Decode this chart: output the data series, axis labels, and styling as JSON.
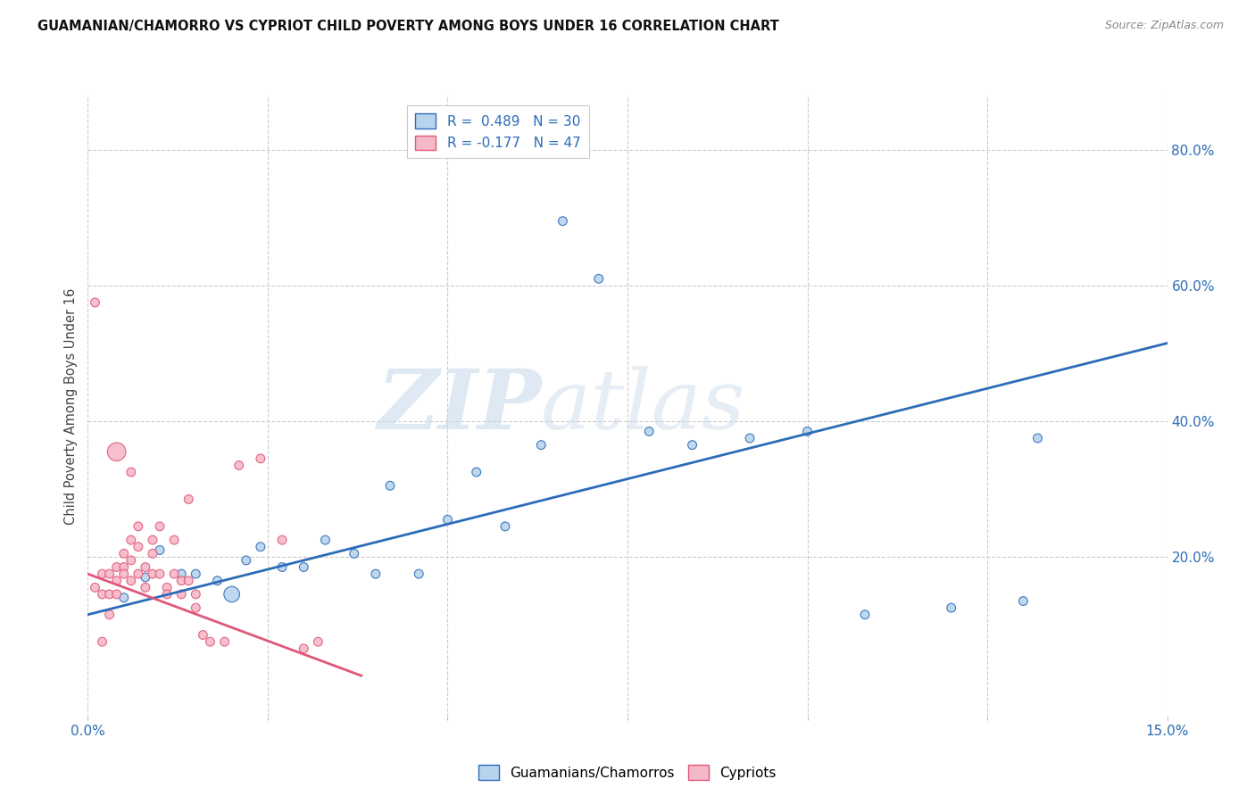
{
  "title": "GUAMANIAN/CHAMORRO VS CYPRIOT CHILD POVERTY AMONG BOYS UNDER 16 CORRELATION CHART",
  "source": "Source: ZipAtlas.com",
  "ylabel": "Child Poverty Among Boys Under 16",
  "blue_label": "Guamanians/Chamorros",
  "pink_label": "Cypriots",
  "blue_color": "#b8d4ed",
  "pink_color": "#f5b8c8",
  "blue_line_color": "#2b6cb8",
  "pink_line_color": "#e05878",
  "blue_r": "R =  0.489",
  "blue_n": "N = 30",
  "pink_r": "R = -0.177",
  "pink_n": "N = 47",
  "watermark_zip": "ZIP",
  "watermark_atlas": "atlas",
  "xmin": 0.0,
  "xmax": 0.15,
  "ymin": -0.035,
  "ymax": 0.88,
  "blue_trend_x": [
    0.0,
    0.15
  ],
  "blue_trend_y": [
    0.115,
    0.515
  ],
  "pink_trend_x": [
    0.0,
    0.038
  ],
  "pink_trend_y": [
    0.175,
    0.025
  ],
  "blue_x": [
    0.005,
    0.008,
    0.01,
    0.013,
    0.015,
    0.018,
    0.02,
    0.022,
    0.024,
    0.027,
    0.03,
    0.033,
    0.037,
    0.04,
    0.042,
    0.046,
    0.05,
    0.054,
    0.058,
    0.063,
    0.066,
    0.071,
    0.078,
    0.084,
    0.092,
    0.1,
    0.108,
    0.12,
    0.13,
    0.132
  ],
  "blue_y": [
    0.14,
    0.17,
    0.21,
    0.175,
    0.175,
    0.165,
    0.145,
    0.195,
    0.215,
    0.185,
    0.185,
    0.225,
    0.205,
    0.175,
    0.305,
    0.175,
    0.255,
    0.325,
    0.245,
    0.365,
    0.695,
    0.61,
    0.385,
    0.365,
    0.375,
    0.385,
    0.115,
    0.125,
    0.135,
    0.375
  ],
  "blue_s": [
    50,
    50,
    50,
    50,
    50,
    50,
    160,
    50,
    50,
    50,
    50,
    50,
    50,
    50,
    50,
    50,
    50,
    50,
    50,
    50,
    50,
    50,
    50,
    50,
    50,
    50,
    50,
    50,
    50,
    50
  ],
  "pink_x": [
    0.001,
    0.001,
    0.002,
    0.002,
    0.003,
    0.003,
    0.003,
    0.004,
    0.004,
    0.004,
    0.005,
    0.005,
    0.005,
    0.006,
    0.006,
    0.006,
    0.007,
    0.007,
    0.007,
    0.008,
    0.008,
    0.009,
    0.009,
    0.009,
    0.01,
    0.01,
    0.011,
    0.011,
    0.012,
    0.012,
    0.013,
    0.013,
    0.014,
    0.014,
    0.015,
    0.015,
    0.016,
    0.017,
    0.019,
    0.021,
    0.024,
    0.027,
    0.03,
    0.032,
    0.004,
    0.006,
    0.002
  ],
  "pink_y": [
    0.155,
    0.575,
    0.175,
    0.145,
    0.175,
    0.145,
    0.115,
    0.185,
    0.165,
    0.145,
    0.205,
    0.185,
    0.175,
    0.225,
    0.195,
    0.165,
    0.245,
    0.215,
    0.175,
    0.185,
    0.155,
    0.225,
    0.205,
    0.175,
    0.175,
    0.245,
    0.155,
    0.145,
    0.175,
    0.225,
    0.145,
    0.165,
    0.165,
    0.285,
    0.145,
    0.125,
    0.085,
    0.075,
    0.075,
    0.335,
    0.345,
    0.225,
    0.065,
    0.075,
    0.355,
    0.325,
    0.075
  ],
  "pink_s": [
    50,
    50,
    50,
    50,
    50,
    50,
    50,
    50,
    50,
    50,
    50,
    50,
    50,
    50,
    50,
    50,
    50,
    50,
    50,
    50,
    50,
    50,
    50,
    50,
    50,
    50,
    50,
    50,
    50,
    50,
    50,
    50,
    50,
    50,
    50,
    50,
    50,
    50,
    50,
    50,
    50,
    50,
    50,
    50,
    220,
    50,
    50
  ]
}
